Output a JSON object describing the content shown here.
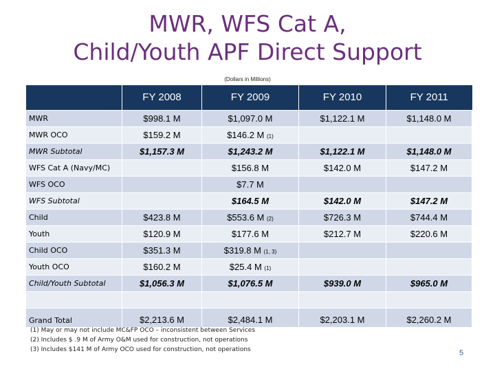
{
  "title": {
    "line1": "MWR, WFS Cat A,",
    "line2": "Child/Youth APF Direct Support"
  },
  "subtitle": "(Dollars in Millions)",
  "table": {
    "headers": [
      "",
      "FY 2008",
      "FY 2009",
      "FY 2010",
      "FY 2011"
    ],
    "rows": [
      {
        "label": "MWR",
        "cells": [
          "$998.1 M",
          "$1,097.0 M",
          "$1,122.1 M",
          "$1,148.0 M"
        ],
        "notes": [
          "",
          "",
          "",
          ""
        ],
        "style": "normal"
      },
      {
        "label": "MWR OCO",
        "cells": [
          "$159.2 M",
          "$146.2 M",
          "",
          ""
        ],
        "notes": [
          "",
          "(1)",
          "",
          ""
        ],
        "style": "normal"
      },
      {
        "label": "MWR Subtotal",
        "cells": [
          "$1,157.3 M",
          "$1,243.2 M",
          "$1,122.1 M",
          "$1,148.0 M"
        ],
        "notes": [
          "",
          "",
          "",
          ""
        ],
        "style": "italic"
      },
      {
        "label": "WFS Cat A (Navy/MC)",
        "cells": [
          "",
          "$156.8 M",
          "$142.0 M",
          "$147.2 M"
        ],
        "notes": [
          "",
          "",
          "",
          ""
        ],
        "style": "normal"
      },
      {
        "label": "WFS OCO",
        "cells": [
          "",
          "$7.7 M",
          "",
          ""
        ],
        "notes": [
          "",
          "",
          "",
          ""
        ],
        "style": "normal"
      },
      {
        "label": "WFS Subtotal",
        "cells": [
          "",
          "$164.5 M",
          "$142.0 M",
          "$147.2 M"
        ],
        "notes": [
          "",
          "",
          "",
          ""
        ],
        "style": "italic"
      },
      {
        "label": "Child",
        "cells": [
          "$423.8 M",
          "$553.6 M",
          "$726.3 M",
          "$744.4 M"
        ],
        "notes": [
          "",
          "(2)",
          "",
          ""
        ],
        "style": "normal"
      },
      {
        "label": "Youth",
        "cells": [
          "$120.9 M",
          "$177.6 M",
          "$212.7 M",
          "$220.6 M"
        ],
        "notes": [
          "",
          "",
          "",
          ""
        ],
        "style": "normal"
      },
      {
        "label": "Child OCO",
        "cells": [
          "$351.3 M",
          "$319.8 M",
          "",
          ""
        ],
        "notes": [
          "",
          "(1, 3)",
          "",
          ""
        ],
        "style": "normal"
      },
      {
        "label": "Youth OCO",
        "cells": [
          "$160.2 M",
          "$25.4 M",
          "",
          ""
        ],
        "notes": [
          "",
          "(1)",
          "",
          ""
        ],
        "style": "normal"
      },
      {
        "label": "Child/Youth Subtotal",
        "cells": [
          "$1,056.3 M",
          "$1,076.5 M",
          "$939.0 M",
          "$965.0 M"
        ],
        "notes": [
          "",
          "",
          "",
          ""
        ],
        "style": "italic"
      },
      {
        "label": "",
        "cells": [
          "",
          "",
          "",
          ""
        ],
        "notes": [
          "",
          "",
          "",
          ""
        ],
        "style": "blank"
      },
      {
        "label": "Grand Total",
        "cells": [
          "$2,213.6 M",
          "$2,484.1 M",
          "$2,203.1 M",
          "$2,260.2 M"
        ],
        "notes": [
          "",
          "",
          "",
          ""
        ],
        "style": "total"
      }
    ]
  },
  "footnotes": [
    "(1)  May or may not include MC&FP OCO – inconsistent between Services",
    "(2)  Includes $ .9 M of Army O&M used for construction, not operations",
    "(3)  Includes $141 M of Army OCO used for construction, not operations"
  ],
  "page_number": "5"
}
